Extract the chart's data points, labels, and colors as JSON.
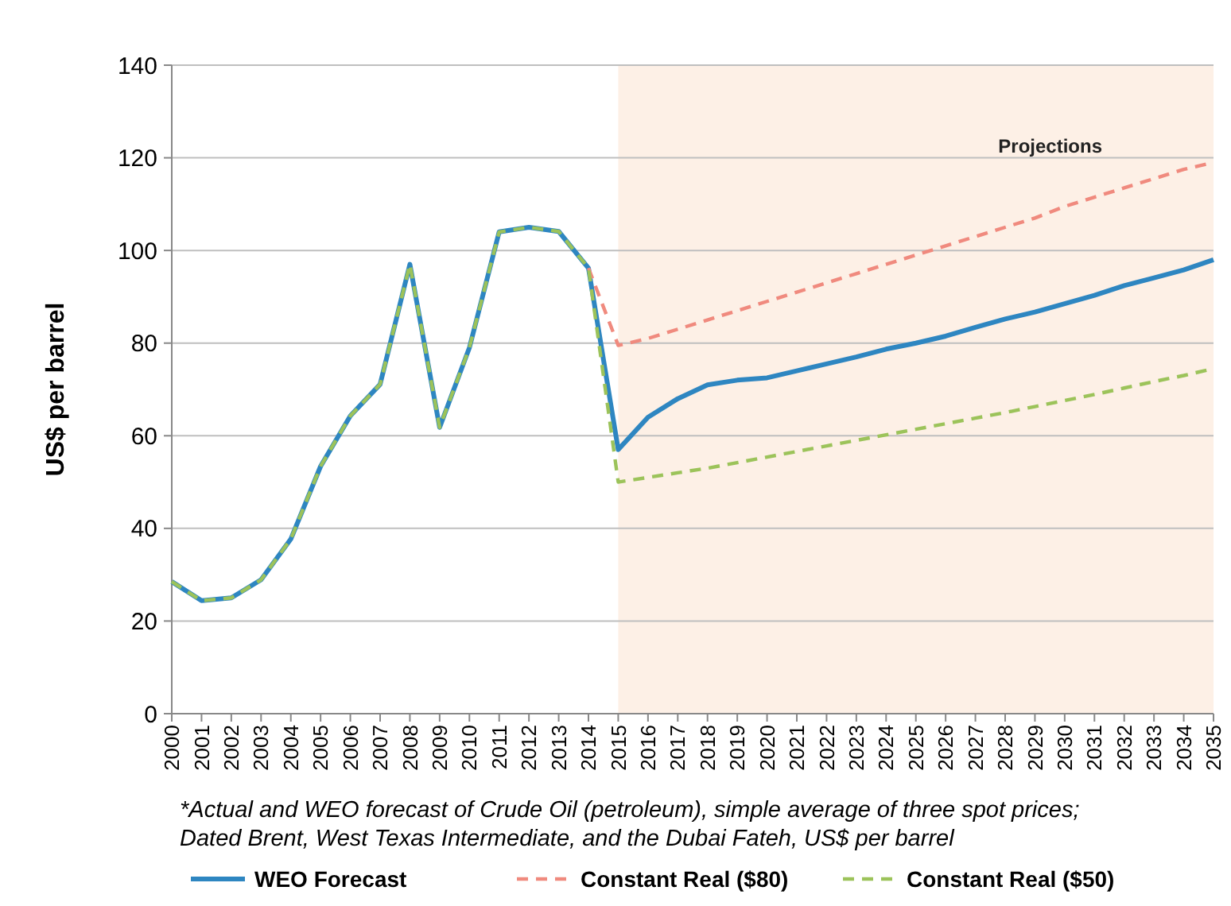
{
  "chart_data": {
    "type": "line",
    "ylabel": "US$ per barrel",
    "x": [
      2000,
      2001,
      2002,
      2003,
      2004,
      2005,
      2006,
      2007,
      2008,
      2009,
      2010,
      2011,
      2012,
      2013,
      2014,
      2015,
      2016,
      2017,
      2018,
      2019,
      2020,
      2021,
      2022,
      2023,
      2024,
      2025,
      2026,
      2027,
      2028,
      2029,
      2030,
      2031,
      2032,
      2033,
      2034,
      2035
    ],
    "series": [
      {
        "name": "WEO Forecast",
        "color": "#2e86c1",
        "line_style": "solid",
        "values": [
          28.5,
          24.4,
          25,
          28.9,
          37.7,
          53.4,
          64.3,
          71.1,
          97,
          61.8,
          79,
          104,
          105,
          104.1,
          96.2,
          57,
          64,
          68,
          71,
          72,
          72.5,
          74,
          75.5,
          77,
          78.7,
          80,
          81.5,
          83.4,
          85.2,
          86.7,
          88.5,
          90.3,
          92.4,
          94.1,
          95.8,
          98
        ]
      },
      {
        "name": "Constant Real ($80)",
        "color": "#f08a7e",
        "line_style": "dashed",
        "values": [
          null,
          null,
          null,
          null,
          null,
          null,
          null,
          null,
          null,
          null,
          null,
          null,
          null,
          null,
          96.2,
          79.5,
          81,
          83,
          85,
          87,
          89,
          91,
          93,
          95,
          97,
          99,
          101,
          103,
          105,
          107,
          109.5,
          111.5,
          113.5,
          115.5,
          117.5,
          119
        ]
      },
      {
        "name": "Constant Real ($50)",
        "color": "#9cc35a",
        "line_style": "dashed",
        "values": [
          28.5,
          24.4,
          25,
          28.9,
          37.7,
          53.4,
          64.3,
          71.1,
          97,
          61.8,
          79,
          104,
          105,
          104.1,
          96.2,
          50,
          51,
          52,
          53,
          54.2,
          55.4,
          56.6,
          57.8,
          59,
          60.2,
          61.4,
          62.6,
          63.8,
          65,
          66.3,
          67.6,
          68.9,
          70.3,
          71.7,
          73,
          74.5
        ]
      }
    ],
    "xlim": [
      2000,
      2035
    ],
    "xticks": [
      2000,
      2001,
      2002,
      2003,
      2004,
      2005,
      2006,
      2007,
      2008,
      2009,
      2010,
      2011,
      2012,
      2013,
      2014,
      2015,
      2016,
      2017,
      2018,
      2019,
      2020,
      2021,
      2022,
      2023,
      2024,
      2025,
      2026,
      2027,
      2028,
      2029,
      2030,
      2031,
      2032,
      2033,
      2034,
      2035
    ],
    "ylim": [
      0,
      140
    ],
    "yticks": [
      0,
      20,
      40,
      60,
      80,
      100,
      120,
      140
    ],
    "grid": "y",
    "legend": "bottom",
    "marker": "none",
    "bands": [
      {
        "axis": "x",
        "from": 2015,
        "to": 2035,
        "label": "Projections",
        "color": "#fdf0e6"
      }
    ],
    "annotations": [
      "*Actual and WEO forecast of Crude Oil (petroleum), simple average of three spot prices;",
      "Dated Brent, West Texas Intermediate, and the Dubai Fateh, US$ per barrel"
    ]
  }
}
